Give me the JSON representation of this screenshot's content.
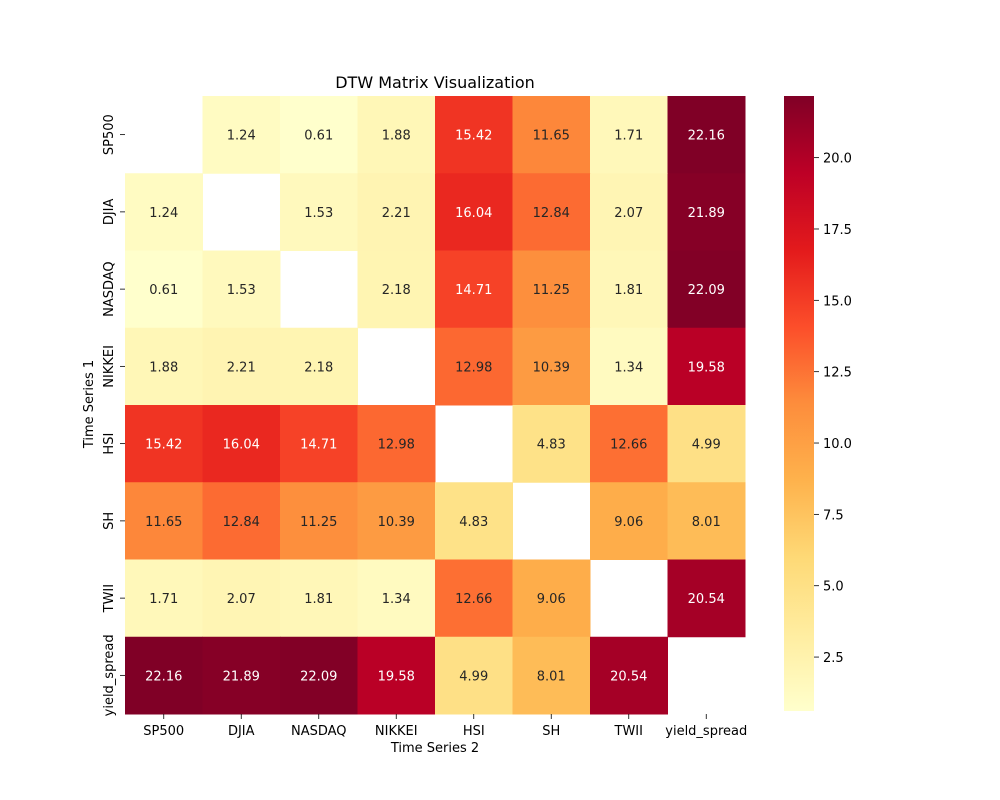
{
  "chart_data": {
    "type": "heatmap",
    "title": "DTW Matrix Visualization",
    "xlabel": "Time Series 2",
    "ylabel": "Time Series 1",
    "x_categories": [
      "SP500",
      "DJIA",
      "NASDAQ",
      "NIKKEI",
      "HSI",
      "SH",
      "TWII",
      "yield_spread"
    ],
    "y_categories": [
      "SP500",
      "DJIA",
      "NASDAQ",
      "NIKKEI",
      "HSI",
      "SH",
      "TWII",
      "yield_spread"
    ],
    "values": [
      [
        null,
        1.24,
        0.61,
        1.88,
        15.42,
        11.65,
        1.71,
        22.16
      ],
      [
        1.24,
        null,
        1.53,
        2.21,
        16.04,
        12.84,
        2.07,
        21.89
      ],
      [
        0.61,
        1.53,
        null,
        2.18,
        14.71,
        11.25,
        1.81,
        22.09
      ],
      [
        1.88,
        2.21,
        2.18,
        null,
        12.98,
        10.39,
        1.34,
        19.58
      ],
      [
        15.42,
        16.04,
        14.71,
        12.98,
        null,
        4.83,
        12.66,
        4.99
      ],
      [
        11.65,
        12.84,
        11.25,
        10.39,
        4.83,
        null,
        9.06,
        8.01
      ],
      [
        1.71,
        2.07,
        1.81,
        1.34,
        12.66,
        9.06,
        null,
        20.54
      ],
      [
        22.16,
        21.89,
        22.09,
        19.58,
        4.99,
        8.01,
        20.54,
        null
      ]
    ],
    "colorbar": {
      "colormap": "YlOrRd",
      "range": [
        0.61,
        22.16
      ],
      "ticks": [
        "2.5",
        "5.0",
        "7.5",
        "10.0",
        "12.5",
        "15.0",
        "17.5",
        "20.0"
      ]
    },
    "grid": false
  }
}
